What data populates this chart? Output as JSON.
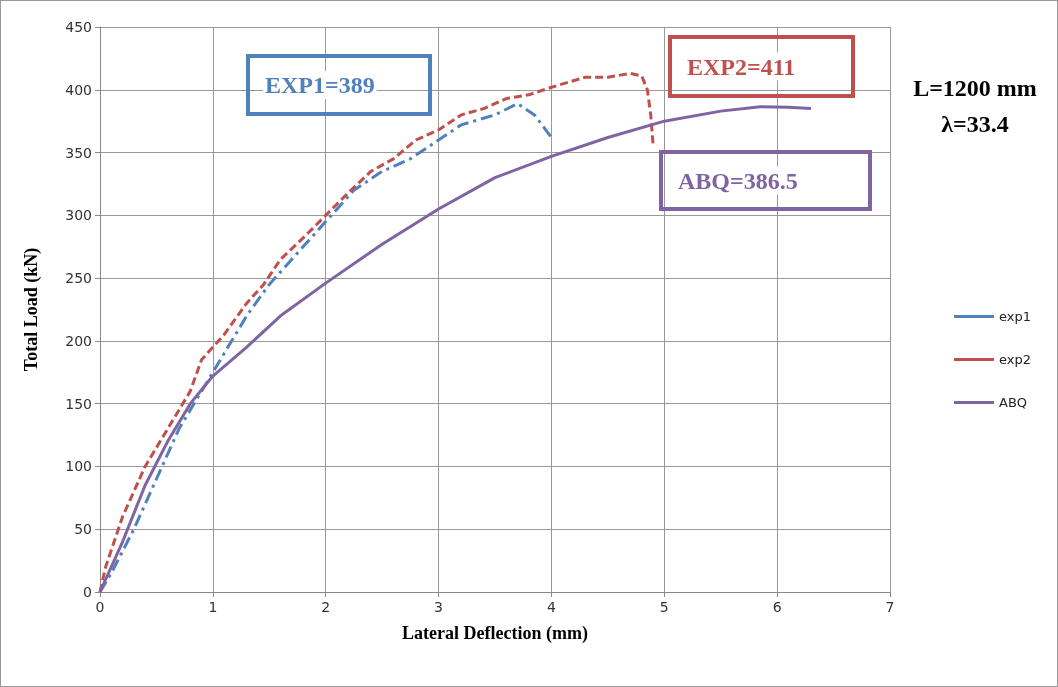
{
  "chart_data": {
    "type": "line",
    "xlabel": "Lateral Deflection (mm)",
    "ylabel": "Total Load (kN)",
    "xlim": [
      0,
      7
    ],
    "xticks": [
      0,
      1,
      2,
      3,
      4,
      5,
      6,
      7
    ],
    "ylim": [
      0,
      450
    ],
    "yticks": [
      0,
      50,
      100,
      150,
      200,
      250,
      300,
      350,
      400,
      450
    ],
    "grid": true,
    "legend": "right",
    "marker": "none",
    "annotations": [
      "EXP1=389",
      "EXP2=411",
      "ABQ=386.5",
      "L=1200 mm",
      "λ=33.4"
    ],
    "series": [
      {
        "name": "exp1",
        "color": "#4f81bd",
        "line_style": "dashdot",
        "x": [
          0,
          0.1,
          0.3,
          0.5,
          0.7,
          0.9,
          1.1,
          1.3,
          1.5,
          1.75,
          2.0,
          2.25,
          2.5,
          2.75,
          3.0,
          3.2,
          3.5,
          3.7,
          3.85,
          4.0
        ],
        "values": [
          0,
          15,
          50,
          90,
          130,
          160,
          190,
          220,
          245,
          270,
          295,
          320,
          335,
          345,
          360,
          372,
          380,
          389,
          380,
          362
        ]
      },
      {
        "name": "exp2",
        "color": "#c0504d",
        "line_style": "dashed",
        "x": [
          0,
          0.05,
          0.2,
          0.4,
          0.6,
          0.8,
          0.9,
          1.1,
          1.3,
          1.45,
          1.6,
          1.8,
          2.0,
          2.2,
          2.4,
          2.6,
          2.8,
          3.0,
          3.2,
          3.4,
          3.6,
          3.8,
          4.0,
          4.3,
          4.5,
          4.7,
          4.8,
          4.85,
          4.88,
          4.9
        ],
        "values": [
          0,
          20,
          60,
          100,
          130,
          160,
          185,
          205,
          230,
          245,
          265,
          282,
          300,
          318,
          335,
          345,
          360,
          368,
          380,
          385,
          393,
          396,
          402,
          410,
          410,
          413,
          411,
          400,
          380,
          357
        ]
      },
      {
        "name": "ABQ",
        "color": "#8064a2",
        "line_style": "solid",
        "x": [
          0,
          0.2,
          0.4,
          0.6,
          0.8,
          1.0,
          1.3,
          1.6,
          2.0,
          2.5,
          3.0,
          3.5,
          4.0,
          4.5,
          5.0,
          5.5,
          5.85,
          6.1,
          6.3
        ],
        "values": [
          0,
          40,
          85,
          120,
          150,
          172,
          195,
          220,
          246,
          277,
          305,
          330,
          347,
          362,
          375,
          383,
          386.5,
          386,
          385
        ]
      }
    ]
  }
}
